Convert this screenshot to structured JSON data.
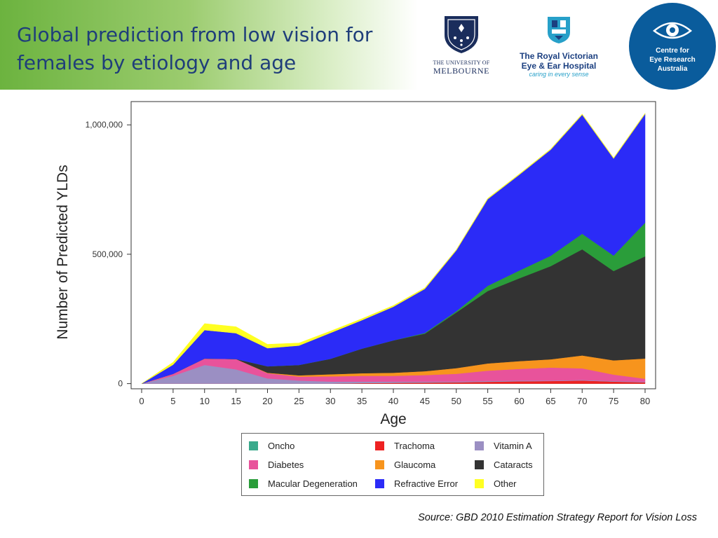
{
  "slide": {
    "title": "Global prediction from low vision for females by etiology and age",
    "source": "Source: GBD 2010 Estimation Strategy Report for Vision Loss"
  },
  "logos": {
    "melbourne": {
      "line1": "THE UNIVERSITY OF",
      "line2": "MELBOURNE"
    },
    "rveh": {
      "line1": "The Royal Victorian",
      "line2": "Eye & Ear Hospital",
      "tagline": "caring in every sense"
    },
    "cera": {
      "line1": "Centre for",
      "line2": "Eye Research",
      "line3": "Australia"
    }
  },
  "colors": {
    "title": "#1f3e7a",
    "band": "#6cb33f",
    "melbourne_navy": "#1a2d5c",
    "rveh_teal": "#27a0c9",
    "cera_blue": "#0a5c9c"
  },
  "chart_data": {
    "type": "area",
    "stacked": true,
    "xlabel": "Age",
    "ylabel": "Number of Predicted YLDs",
    "x": [
      0,
      5,
      10,
      15,
      20,
      25,
      30,
      35,
      40,
      45,
      50,
      55,
      60,
      65,
      70,
      75,
      80
    ],
    "xticks": [
      "0",
      "5",
      "10",
      "15",
      "20",
      "25",
      "30",
      "35",
      "40",
      "45",
      "50",
      "55",
      "60",
      "65",
      "70",
      "75",
      "80"
    ],
    "yticks": [
      0,
      500000,
      1000000
    ],
    "ytick_labels": [
      "0",
      "500,000",
      "1,000,000"
    ],
    "ylim": [
      -20000,
      1090000
    ],
    "legend_position": "bottom",
    "series": [
      {
        "name": "Oncho",
        "color": "#3aaa8c",
        "values": [
          0,
          0,
          0,
          0,
          0,
          0,
          0,
          0,
          0,
          0,
          0,
          0,
          0,
          0,
          0,
          0,
          0
        ]
      },
      {
        "name": "Trachoma",
        "color": "#ee2222",
        "values": [
          0,
          0,
          0,
          0,
          0,
          0,
          0,
          2000,
          3000,
          4000,
          5000,
          7000,
          9000,
          10000,
          12000,
          8000,
          5000
        ]
      },
      {
        "name": "Vitamin A",
        "color": "#9b8fc3",
        "values": [
          0,
          30000,
          72000,
          55000,
          20000,
          12000,
          8000,
          6000,
          5000,
          4000,
          3000,
          3000,
          3000,
          2000,
          2000,
          2000,
          2000
        ]
      },
      {
        "name": "Diabetes",
        "color": "#e8539b",
        "values": [
          0,
          8000,
          25000,
          40000,
          20000,
          15000,
          20000,
          22000,
          22000,
          25000,
          30000,
          40000,
          45000,
          50000,
          45000,
          25000,
          12000
        ]
      },
      {
        "name": "Glaucoma",
        "color": "#f7941d",
        "values": [
          0,
          0,
          0,
          0,
          2000,
          5000,
          8000,
          10000,
          12000,
          15000,
          22000,
          28000,
          30000,
          32000,
          50000,
          55000,
          78000
        ]
      },
      {
        "name": "Cataracts",
        "color": "#333333",
        "values": [
          0,
          0,
          0,
          0,
          25000,
          40000,
          60000,
          95000,
          125000,
          145000,
          215000,
          280000,
          320000,
          360000,
          410000,
          345000,
          395000
        ]
      },
      {
        "name": "Macular Degeneration",
        "color": "#2a9d3a",
        "values": [
          0,
          0,
          0,
          0,
          0,
          0,
          0,
          0,
          0,
          3000,
          5000,
          20000,
          30000,
          40000,
          60000,
          60000,
          130000
        ]
      },
      {
        "name": "Refractive Error",
        "color": "#2b2bf7",
        "values": [
          0,
          35000,
          110000,
          100000,
          70000,
          75000,
          100000,
          110000,
          130000,
          170000,
          235000,
          335000,
          370000,
          410000,
          460000,
          375000,
          420000
        ]
      },
      {
        "name": "Other",
        "color": "#ffff22",
        "values": [
          0,
          10000,
          25000,
          25000,
          15000,
          10000,
          7000,
          6000,
          5000,
          4000,
          3000,
          3000,
          3000,
          3000,
          3000,
          3000,
          3000
        ]
      }
    ],
    "legend": [
      {
        "label": "Oncho",
        "color": "#3aaa8c"
      },
      {
        "label": "Trachoma",
        "color": "#ee2222"
      },
      {
        "label": "Vitamin A",
        "color": "#9b8fc3"
      },
      {
        "label": "Diabetes",
        "color": "#e8539b"
      },
      {
        "label": "Glaucoma",
        "color": "#f7941d"
      },
      {
        "label": "Cataracts",
        "color": "#333333"
      },
      {
        "label": "Macular Degeneration",
        "color": "#2a9d3a"
      },
      {
        "label": "Refractive Error",
        "color": "#2b2bf7"
      },
      {
        "label": "Other",
        "color": "#ffff22"
      }
    ]
  }
}
